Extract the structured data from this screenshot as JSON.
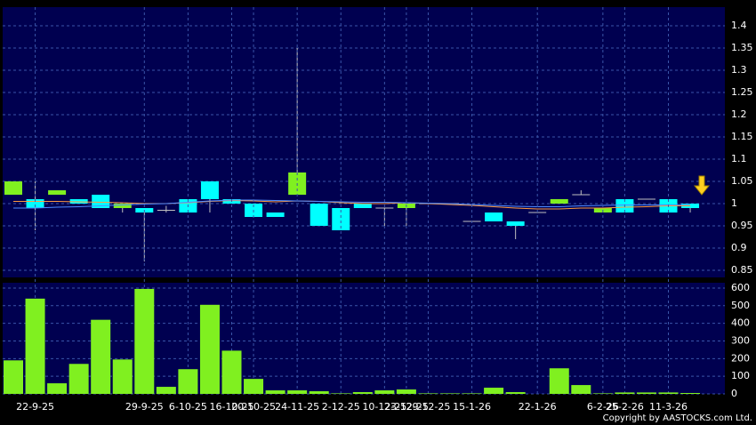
{
  "chart_data": [
    {
      "type": "candlestick",
      "open": [
        1.05,
        0.99,
        1.03,
        1.0,
        0.99,
        1.0,
        0.98,
        0.985,
        0.98,
        1.01,
        1.0,
        0.97,
        0.97,
        1.07,
        0.95,
        0.94,
        0.99,
        0.99,
        1.0,
        1.0,
        1.0,
        0.96,
        0.96,
        0.95,
        0.98,
        1.01,
        1.02,
        0.99,
        0.98,
        1.01,
        0.98,
        0.99
      ],
      "high": [
        1.05,
        1.05,
        1.03,
        1.01,
        1.02,
        1.0,
        0.99,
        0.995,
        1.01,
        1.05,
        1.01,
        1.0,
        0.98,
        1.35,
        1.0,
        0.99,
        1.0,
        0.99,
        1.0,
        1.0,
        1.0,
        0.96,
        0.98,
        0.96,
        0.98,
        1.01,
        1.03,
        0.99,
        1.01,
        1.01,
        1.01,
        1.0
      ],
      "low": [
        1.02,
        0.94,
        1.02,
        1.0,
        0.99,
        0.98,
        0.87,
        0.98,
        0.98,
        0.98,
        1.0,
        0.97,
        0.97,
        1.02,
        0.95,
        0.94,
        0.99,
        0.95,
        0.95,
        1.0,
        1.0,
        0.96,
        0.96,
        0.92,
        0.98,
        1.0,
        1.02,
        0.98,
        0.98,
        1.01,
        0.98,
        0.98
      ],
      "close": [
        1.02,
        1.01,
        1.02,
        1.01,
        1.02,
        0.99,
        0.99,
        0.985,
        1.01,
        1.05,
        1.01,
        1.0,
        0.98,
        1.02,
        1.0,
        0.99,
        1.0,
        0.99,
        0.99,
        1.0,
        1.0,
        0.96,
        0.98,
        0.96,
        0.98,
        1.0,
        1.02,
        0.98,
        1.01,
        1.01,
        1.01,
        1.0
      ],
      "up_color": "#00ffff",
      "down_color": "#80f020",
      "series": [
        {
          "color": "#ff9a40",
          "values": [
            1.005,
            1.005,
            1.005,
            1.004,
            1.003,
            1.002,
            1.0,
            1.0,
            1.002,
            1.005,
            1.007,
            1.006,
            1.004,
            1.006,
            1.005,
            1.002,
            1.0,
            1.0,
            1.002,
            1.0,
            0.998,
            0.996,
            0.993,
            0.99,
            0.988,
            0.988,
            0.99,
            0.99,
            0.992,
            0.993,
            0.995,
            0.995
          ]
        },
        {
          "color": "#4f8cff",
          "values": [
            0.99,
            0.99,
            0.992,
            0.993,
            0.995,
            0.997,
            0.999,
            1.0,
            1.003,
            1.006,
            1.008,
            1.008,
            1.007,
            1.006,
            1.005,
            1.004,
            1.003,
            1.003,
            1.002,
            1.001,
            1.0,
            0.998,
            0.996,
            0.994,
            0.993,
            0.993,
            0.995,
            0.996,
            0.997,
            0.997,
            0.997,
            0.998
          ]
        }
      ],
      "ylim": [
        0.834,
        1.442
      ],
      "yticks": [
        0.85,
        0.9,
        0.95,
        1,
        1.05,
        1.1,
        1.15,
        1.2,
        1.25,
        1.3,
        1.35,
        1.4
      ],
      "grid": true
    },
    {
      "type": "bar",
      "categories": [
        null,
        "22-9-25",
        null,
        null,
        null,
        null,
        "29-9-25",
        null,
        "6-10-25",
        null,
        "16-10-25",
        "20-10-25",
        null,
        "24-11-25",
        null,
        "2-12-25",
        null,
        "10-12-25",
        "23-12-25",
        "29-12-25",
        null,
        "15-1-26",
        null,
        null,
        "22-1-26",
        null,
        null,
        "6-2-26",
        "25-2-26",
        null,
        "11-3-26",
        null
      ],
      "values": [
        190,
        540,
        60,
        170,
        420,
        195,
        595,
        40,
        140,
        505,
        245,
        85,
        20,
        20,
        15,
        3,
        10,
        20,
        25,
        3,
        3,
        3,
        35,
        10,
        0,
        145,
        50,
        3,
        8,
        8,
        8,
        5
      ],
      "color": "#80f020",
      "ylim": [
        0,
        630
      ],
      "yticks": [
        0,
        100,
        200,
        300,
        400,
        500,
        600
      ],
      "grid": true
    }
  ],
  "copyright": "Copyright by AASTOCKS.com Ltd."
}
